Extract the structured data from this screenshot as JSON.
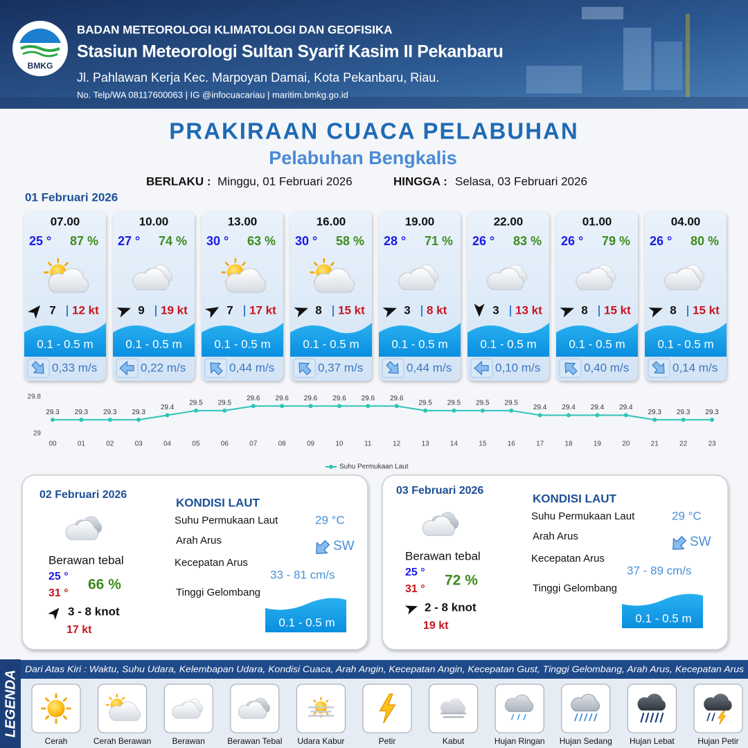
{
  "header": {
    "logo": "BMKG",
    "agency": "BADAN METEOROLOGI KLIMATOLOGI DAN GEOFISIKA",
    "station": "Stasiun Meteorologi Sultan Syarif Kasim II Pekanbaru",
    "address": "Jl. Pahlawan Kerja Kec. Marpoyan Damai, Kota Pekanbaru, Riau.",
    "contact": "No. Telp/WA 08117600063 | IG @infocuacariau | maritim.bmkg.go.id"
  },
  "title": "PRAKIRAAN CUACA PELABUHAN",
  "subtitle": "Pelabuhan Bengkalis",
  "validity": {
    "from_label": "BERLAKU :",
    "from": "Minggu, 01 Februari 2026",
    "to_label": "HINGGA :",
    "to": "Selasa, 03 Februari 2026"
  },
  "day1": {
    "date": "01 Februari 2026",
    "cards": [
      {
        "time": "07.00",
        "temp": "25 °",
        "humidity": "87 %",
        "icon": "cerah-berawan",
        "wind_dir": 40,
        "wind_speed": 7,
        "gust": "12 kt",
        "wave": "0.1 - 0.5 m",
        "current_dir": 135,
        "current_speed": "0,33 m/s"
      },
      {
        "time": "10.00",
        "temp": "27 °",
        "humidity": "74 %",
        "icon": "berawan",
        "wind_dir": 70,
        "wind_speed": 9,
        "gust": "19 kt",
        "wave": "0.1 - 0.5 m",
        "current_dir": 270,
        "current_speed": "0,22 m/s"
      },
      {
        "time": "13.00",
        "temp": "30 °",
        "humidity": "63 %",
        "icon": "cerah-berawan",
        "wind_dir": 60,
        "wind_speed": 7,
        "gust": "17 kt",
        "wave": "0.1 - 0.5 m",
        "current_dir": 315,
        "current_speed": "0,44 m/s"
      },
      {
        "time": "16.00",
        "temp": "30 °",
        "humidity": "58 %",
        "icon": "cerah-berawan",
        "wind_dir": 70,
        "wind_speed": 8,
        "gust": "15 kt",
        "wave": "0.1 - 0.5 m",
        "current_dir": 315,
        "current_speed": "0,37 m/s"
      },
      {
        "time": "19.00",
        "temp": "28 °",
        "humidity": "71 %",
        "icon": "berawan",
        "wind_dir": 70,
        "wind_speed": 3,
        "gust": "8 kt",
        "wave": "0.1 - 0.5 m",
        "current_dir": 135,
        "current_speed": "0,44 m/s"
      },
      {
        "time": "22.00",
        "temp": "26 °",
        "humidity": "83 %",
        "icon": "berawan",
        "wind_dir": 180,
        "wind_speed": 3,
        "gust": "13 kt",
        "wave": "0.1 - 0.5 m",
        "current_dir": 270,
        "current_speed": "0,10 m/s"
      },
      {
        "time": "01.00",
        "temp": "26 °",
        "humidity": "79 %",
        "icon": "berawan",
        "wind_dir": 70,
        "wind_speed": 8,
        "gust": "15 kt",
        "wave": "0.1 - 0.5 m",
        "current_dir": 315,
        "current_speed": "0,40 m/s"
      },
      {
        "time": "04.00",
        "temp": "26 °",
        "humidity": "80 %",
        "icon": "berawan",
        "wind_dir": 70,
        "wind_speed": 8,
        "gust": "15 kt",
        "wave": "0.1 - 0.5 m",
        "current_dir": 135,
        "current_speed": "0,14 m/s"
      }
    ]
  },
  "chart_data": {
    "type": "line",
    "categories": [
      "00",
      "01",
      "02",
      "03",
      "04",
      "05",
      "06",
      "07",
      "08",
      "09",
      "10",
      "11",
      "12",
      "13",
      "14",
      "15",
      "16",
      "17",
      "18",
      "19",
      "20",
      "21",
      "22",
      "23"
    ],
    "series": [
      {
        "name": "Suhu Permukaan Laut",
        "color": "#2ec4b6",
        "values": [
          29.3,
          29.3,
          29.3,
          29.3,
          29.4,
          29.5,
          29.5,
          29.6,
          29.6,
          29.6,
          29.6,
          29.6,
          29.6,
          29.5,
          29.5,
          29.5,
          29.5,
          29.4,
          29.4,
          29.4,
          29.4,
          29.3,
          29.3,
          29.3
        ]
      }
    ],
    "ylim": [
      29,
      29.8
    ],
    "yticks": [
      29,
      29.8
    ]
  },
  "days": [
    {
      "date": "02 Februari 2026",
      "icon": "berawan-tebal",
      "condition": "Berawan tebal",
      "temp_min": "25 °",
      "temp_max": "31 °",
      "humidity": "66 %",
      "wind_dir": 40,
      "wind": "3  - 8 knot",
      "gust": "17 kt",
      "sea_heading": "KONDISI LAUT",
      "sst_label": "Suhu Permukaan Laut",
      "sst": "29 °C",
      "current_dir_label": "Arah Arus",
      "current_dir_deg": 225,
      "current_dir": "SW",
      "current_speed_label": "Kecepatan Arus",
      "current_speed": "33  - 81 cm/s",
      "wave_label": "Tinggi Gelombang",
      "wave": "0.1 - 0.5 m"
    },
    {
      "date": "03 Februari 2026",
      "icon": "berawan-tebal",
      "condition": "Berawan tebal",
      "temp_min": "25 °",
      "temp_max": "31 °",
      "humidity": "72 %",
      "wind_dir": 70,
      "wind": "2  - 8 knot",
      "gust": "19 kt",
      "sea_heading": "KONDISI LAUT",
      "sst_label": "Suhu Permukaan Laut",
      "sst": "29 °C",
      "current_dir_label": "Arah Arus",
      "current_dir_deg": 225,
      "current_dir": "SW",
      "current_speed_label": "Kecepatan Arus",
      "current_speed": "37  - 89 cm/s",
      "wave_label": "Tinggi Gelombang",
      "wave": "0.1 - 0.5 m"
    }
  ],
  "legend": {
    "title": "LEGENDA",
    "description": "Dari Atas Kiri : Waktu, Suhu Udara, Kelembapan Udara, Kondisi Cuaca, Arah Angin, Kecepatan Angin, Kecepatan Gust, Tinggi Gelombang, Arah Arus, Kecepatan Arus",
    "items": [
      {
        "label": "Cerah",
        "icon": "cerah"
      },
      {
        "label": "Cerah Berawan",
        "icon": "cerah-berawan"
      },
      {
        "label": "Berawan",
        "icon": "berawan"
      },
      {
        "label": "Berawan Tebal",
        "icon": "berawan-tebal"
      },
      {
        "label": "Udara Kabur",
        "icon": "udara-kabur"
      },
      {
        "label": "Petir",
        "icon": "petir"
      },
      {
        "label": "Kabut",
        "icon": "kabut"
      },
      {
        "label": "Hujan Ringan",
        "icon": "hujan-ringan"
      },
      {
        "label": "Hujan Sedang",
        "icon": "hujan-sedang"
      },
      {
        "label": "Hujan Lebat",
        "icon": "hujan-lebat"
      },
      {
        "label": "Hujan Petir",
        "icon": "hujan-petir"
      }
    ]
  }
}
